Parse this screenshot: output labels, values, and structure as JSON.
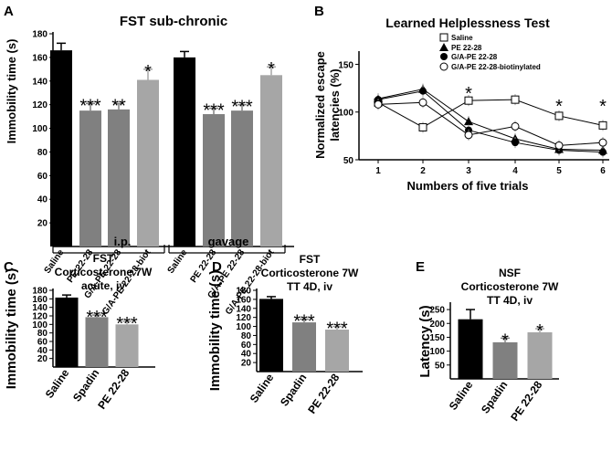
{
  "chart_data": [
    {
      "panel": "A",
      "type": "bar",
      "title": "FST sub-chronic",
      "ylabel": "Immobility time (s)",
      "ylim": [
        0,
        180
      ],
      "yticks": [
        20,
        40,
        60,
        80,
        100,
        120,
        140,
        160,
        180
      ],
      "categories": [
        "Saline",
        "PE 22-28",
        "G/A-PE 22-28",
        "G/A-PE 22-28-biot",
        "Saline",
        "PE 22-28",
        "G/A-PE 22-28",
        "G/A-PE 22-28-biot"
      ],
      "values": [
        166,
        115,
        116,
        141,
        160,
        112,
        115,
        145
      ],
      "errors": [
        6,
        6,
        5,
        9,
        5,
        5,
        5,
        7
      ],
      "colors": [
        "#000000",
        "#808080",
        "#808080",
        "#a6a6a6",
        "#000000",
        "#808080",
        "#808080",
        "#a6a6a6"
      ],
      "annotations": [
        "",
        "***",
        "**",
        "*",
        "",
        "***",
        "***",
        "*"
      ],
      "groups": [
        {
          "label": "i.p."
        },
        {
          "label": "gavage"
        }
      ]
    },
    {
      "panel": "B",
      "type": "line",
      "title": "Learned Helplessness Test",
      "xlabel": "Numbers of five trials",
      "ylabel_lines": [
        "Normalized escape",
        "latencies (%)"
      ],
      "x": [
        1,
        2,
        3,
        4,
        5,
        6
      ],
      "ylim": [
        50,
        160
      ],
      "yticks": [
        50,
        100,
        150
      ],
      "series": [
        {
          "name": "Saline",
          "marker": "open-square",
          "values": [
            110,
            84,
            112,
            113,
            96,
            86
          ]
        },
        {
          "name": "PE 22-28",
          "marker": "filled-triangle",
          "values": [
            114,
            124,
            90,
            72,
            61,
            60
          ]
        },
        {
          "name": "G/A-PE 22-28",
          "marker": "filled-circle",
          "values": [
            113,
            122,
            81,
            68,
            60,
            58
          ]
        },
        {
          "name": "G/A-PE 22-28-biotinylated",
          "marker": "open-circle",
          "values": [
            108,
            110,
            76,
            85,
            65,
            68
          ]
        }
      ],
      "annotations": [
        {
          "x": 3,
          "text": "*"
        },
        {
          "x": 5,
          "text": "*"
        },
        {
          "x": 6,
          "text": "*"
        }
      ]
    },
    {
      "panel": "C",
      "type": "bar",
      "title_lines": [
        "FST",
        "Corticosterone 7W",
        "acute, iv"
      ],
      "ylabel": "Immobility time (s)",
      "ylim": [
        0,
        180
      ],
      "yticks": [
        20,
        40,
        60,
        80,
        100,
        120,
        140,
        160,
        180
      ],
      "categories": [
        "Saline",
        "Spadin",
        "PE 22-28"
      ],
      "values": [
        163,
        117,
        100
      ],
      "errors": [
        6,
        5,
        7
      ],
      "colors": [
        "#000000",
        "#808080",
        "#a6a6a6"
      ],
      "annotations": [
        "",
        "***",
        "***"
      ]
    },
    {
      "panel": "D",
      "type": "bar",
      "title_lines": [
        "FST",
        "Corticosterone 7W",
        "TT 4D, iv"
      ],
      "ylabel": "Immobility time (s)",
      "ylim": [
        0,
        180
      ],
      "yticks": [
        20,
        40,
        60,
        80,
        100,
        120,
        140,
        160,
        180
      ],
      "categories": [
        "Saline",
        "Spadin",
        "PE 22-28"
      ],
      "values": [
        161,
        109,
        93
      ],
      "errors": [
        5,
        7,
        7
      ],
      "colors": [
        "#000000",
        "#808080",
        "#a6a6a6"
      ],
      "annotations": [
        "",
        "***",
        "***"
      ]
    },
    {
      "panel": "E",
      "type": "bar",
      "title_lines": [
        "NSF",
        "Corticosterone 7W",
        "TT 4D, iv"
      ],
      "ylabel": "Latency (s)",
      "ylim": [
        0,
        270
      ],
      "yticks": [
        50,
        100,
        150,
        200,
        250
      ],
      "categories": [
        "Saline",
        "Spadin",
        "PE 22-28"
      ],
      "values": [
        215,
        132,
        168
      ],
      "errors": [
        35,
        15,
        13
      ],
      "colors": [
        "#000000",
        "#808080",
        "#a6a6a6"
      ],
      "annotations": [
        "",
        "*",
        "*"
      ]
    }
  ]
}
